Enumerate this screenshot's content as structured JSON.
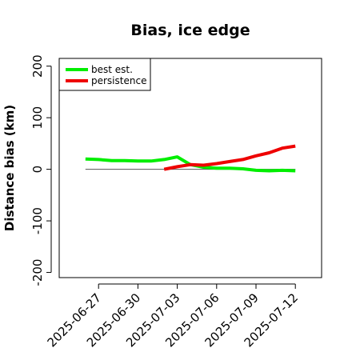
{
  "chart_data": {
    "type": "line",
    "title": "Bias, ice edge",
    "xlabel": "",
    "ylabel": "Distance bias (km)",
    "ylim": [
      -210,
      215
    ],
    "xlim": [
      "2025-06-24",
      "2025-07-14"
    ],
    "x_ticks": [
      "2025-06-27",
      "2025-06-30",
      "2025-07-03",
      "2025-07-06",
      "2025-07-09",
      "2025-07-12"
    ],
    "y_ticks": [
      -200,
      -100,
      0,
      100,
      200
    ],
    "grid": false,
    "legend_position": "top-left",
    "reference_line": {
      "y": 0,
      "from": "2025-06-26",
      "to": "2025-07-12",
      "color": "#555555"
    },
    "series": [
      {
        "name": "best est.",
        "color": "#00ee00",
        "points": [
          [
            "2025-06-26",
            20
          ],
          [
            "2025-06-27",
            19
          ],
          [
            "2025-06-28",
            17
          ],
          [
            "2025-06-29",
            17
          ],
          [
            "2025-06-30",
            16
          ],
          [
            "2025-07-01",
            16
          ],
          [
            "2025-07-02",
            19
          ],
          [
            "2025-07-03",
            24
          ],
          [
            "2025-07-04",
            9
          ],
          [
            "2025-07-05",
            4
          ],
          [
            "2025-07-06",
            2
          ],
          [
            "2025-07-07",
            2
          ],
          [
            "2025-07-08",
            1
          ],
          [
            "2025-07-09",
            -2
          ],
          [
            "2025-07-10",
            -3
          ],
          [
            "2025-07-11",
            -2
          ],
          [
            "2025-07-12",
            -3
          ]
        ]
      },
      {
        "name": "persistence",
        "color": "#ee0000",
        "points": [
          [
            "2025-07-02",
            0
          ],
          [
            "2025-07-03",
            5
          ],
          [
            "2025-07-04",
            9
          ],
          [
            "2025-07-05",
            8
          ],
          [
            "2025-07-06",
            11
          ],
          [
            "2025-07-07",
            15
          ],
          [
            "2025-07-08",
            19
          ],
          [
            "2025-07-09",
            26
          ],
          [
            "2025-07-10",
            32
          ],
          [
            "2025-07-11",
            41
          ],
          [
            "2025-07-12",
            45
          ]
        ]
      }
    ]
  }
}
